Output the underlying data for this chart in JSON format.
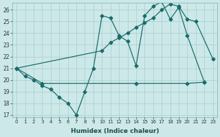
{
  "xlabel": "Humidex (Indice chaleur)",
  "bg_color": "#cce8e8",
  "grid_color": "#aacccc",
  "line_color": "#1a6b6b",
  "xlim": [
    -0.5,
    23.5
  ],
  "ylim": [
    16.8,
    26.6
  ],
  "yticks": [
    17,
    18,
    19,
    20,
    21,
    22,
    23,
    24,
    25,
    26
  ],
  "xticks": [
    0,
    1,
    2,
    3,
    4,
    5,
    6,
    7,
    8,
    9,
    10,
    11,
    12,
    13,
    14,
    15,
    16,
    17,
    18,
    19,
    20,
    21,
    22,
    23
  ],
  "line1_x": [
    0,
    1,
    2,
    3,
    4,
    5,
    6,
    7,
    8,
    9,
    10,
    11,
    12,
    13,
    14,
    15,
    16,
    17,
    18,
    19,
    20,
    22
  ],
  "line1_y": [
    21.0,
    20.3,
    20.0,
    19.5,
    19.2,
    18.5,
    18.0,
    17.0,
    19.0,
    21.0,
    25.5,
    25.3,
    23.8,
    23.3,
    21.2,
    25.5,
    26.3,
    26.7,
    25.2,
    26.2,
    23.8,
    19.8
  ],
  "line2_x": [
    0,
    3,
    14,
    20,
    22
  ],
  "line2_y": [
    21.0,
    19.7,
    19.7,
    19.7,
    19.8
  ],
  "line3_x": [
    0,
    10,
    11,
    12,
    13,
    14,
    15,
    16,
    17,
    18,
    19,
    20,
    21,
    23
  ],
  "line3_y": [
    21.0,
    22.5,
    23.2,
    23.6,
    24.0,
    24.5,
    24.9,
    25.3,
    26.0,
    26.5,
    26.3,
    25.2,
    25.0,
    21.8
  ]
}
